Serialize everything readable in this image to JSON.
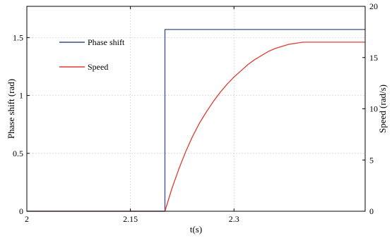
{
  "chart_data": {
    "type": "line",
    "xlabel": "t(s)",
    "ylabel_left": "Phase shift (rad)",
    "ylabel_right": "Speed (rad/s)",
    "xlim": [
      2.0,
      2.49
    ],
    "ylim_left": [
      0,
      1.77
    ],
    "ylim_right": [
      0,
      20
    ],
    "x_ticks": [
      2,
      2.15,
      2.3
    ],
    "x_tick_labels": [
      "2",
      "2.15",
      "2.3"
    ],
    "y_left_ticks": [
      0,
      0.5,
      1,
      1.5
    ],
    "y_left_tick_labels": [
      "0",
      "0.5",
      "1",
      "1.5"
    ],
    "y_right_ticks": [
      0,
      5,
      10,
      15,
      20
    ],
    "y_right_tick_labels": [
      "0",
      "5",
      "10",
      "15",
      "20"
    ],
    "grid": true,
    "legend_position": "top-left",
    "series": [
      {
        "name": "Phase shift",
        "axis": "left",
        "color": "#3b4f8c",
        "x": [
          2.0,
          2.2,
          2.2,
          2.49
        ],
        "y": [
          0.0,
          0.0,
          1.57,
          1.57
        ]
      },
      {
        "name": "Speed",
        "axis": "right",
        "color": "#e03c31",
        "x": [
          2.0,
          2.2,
          2.21,
          2.22,
          2.23,
          2.24,
          2.25,
          2.26,
          2.27,
          2.28,
          2.29,
          2.3,
          2.31,
          2.32,
          2.33,
          2.34,
          2.35,
          2.36,
          2.37,
          2.38,
          2.39,
          2.4,
          2.41,
          2.42,
          2.43,
          2.44,
          2.45,
          2.46,
          2.47,
          2.48,
          2.49
        ],
        "y": [
          0.0,
          0.0,
          2.2,
          4.1,
          5.8,
          7.3,
          8.6,
          9.7,
          10.7,
          11.6,
          12.4,
          13.1,
          13.7,
          14.3,
          14.8,
          15.2,
          15.6,
          15.9,
          16.1,
          16.3,
          16.4,
          16.5,
          16.5,
          16.5,
          16.5,
          16.5,
          16.5,
          16.5,
          16.5,
          16.5,
          16.5
        ]
      }
    ]
  }
}
